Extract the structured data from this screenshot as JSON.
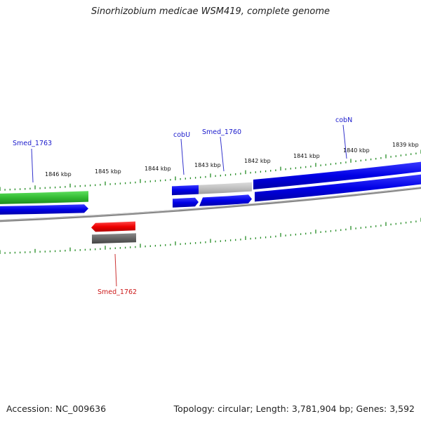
{
  "title": "Sinorhizobium medicae WSM419, complete genome",
  "footer": {
    "accession": "Accession: NC_009636",
    "summary": "Topology: circular; Length: 3,781,904 bp; Genes: 3,592"
  },
  "ruler": {
    "labels": [
      "1846 kbp",
      "1845 kbp",
      "1844 kbp",
      "1843 kbp",
      "1842 kbp",
      "1841 kbp",
      "1840 kbp",
      "1839 kbp"
    ],
    "tick_color": "#228b22"
  },
  "genes": [
    {
      "name": "Smed_1763",
      "label_color": "#1a1acc"
    },
    {
      "name": "cobU",
      "label_color": "#1a1acc"
    },
    {
      "name": "Smed_1760",
      "label_color": "#1a1acc"
    },
    {
      "name": "cobN",
      "label_color": "#1a1acc"
    },
    {
      "name": "Smed_1762",
      "label_color": "#cc1a1a"
    }
  ],
  "colors": {
    "forward_cds": "#0000e6",
    "reverse_cds": "#ee0000",
    "forward_feature_green": "#33bb33",
    "forward_feature_gray": "#c0c0c0",
    "reverse_feature_gray": "#666666",
    "backbone": "#888888"
  }
}
